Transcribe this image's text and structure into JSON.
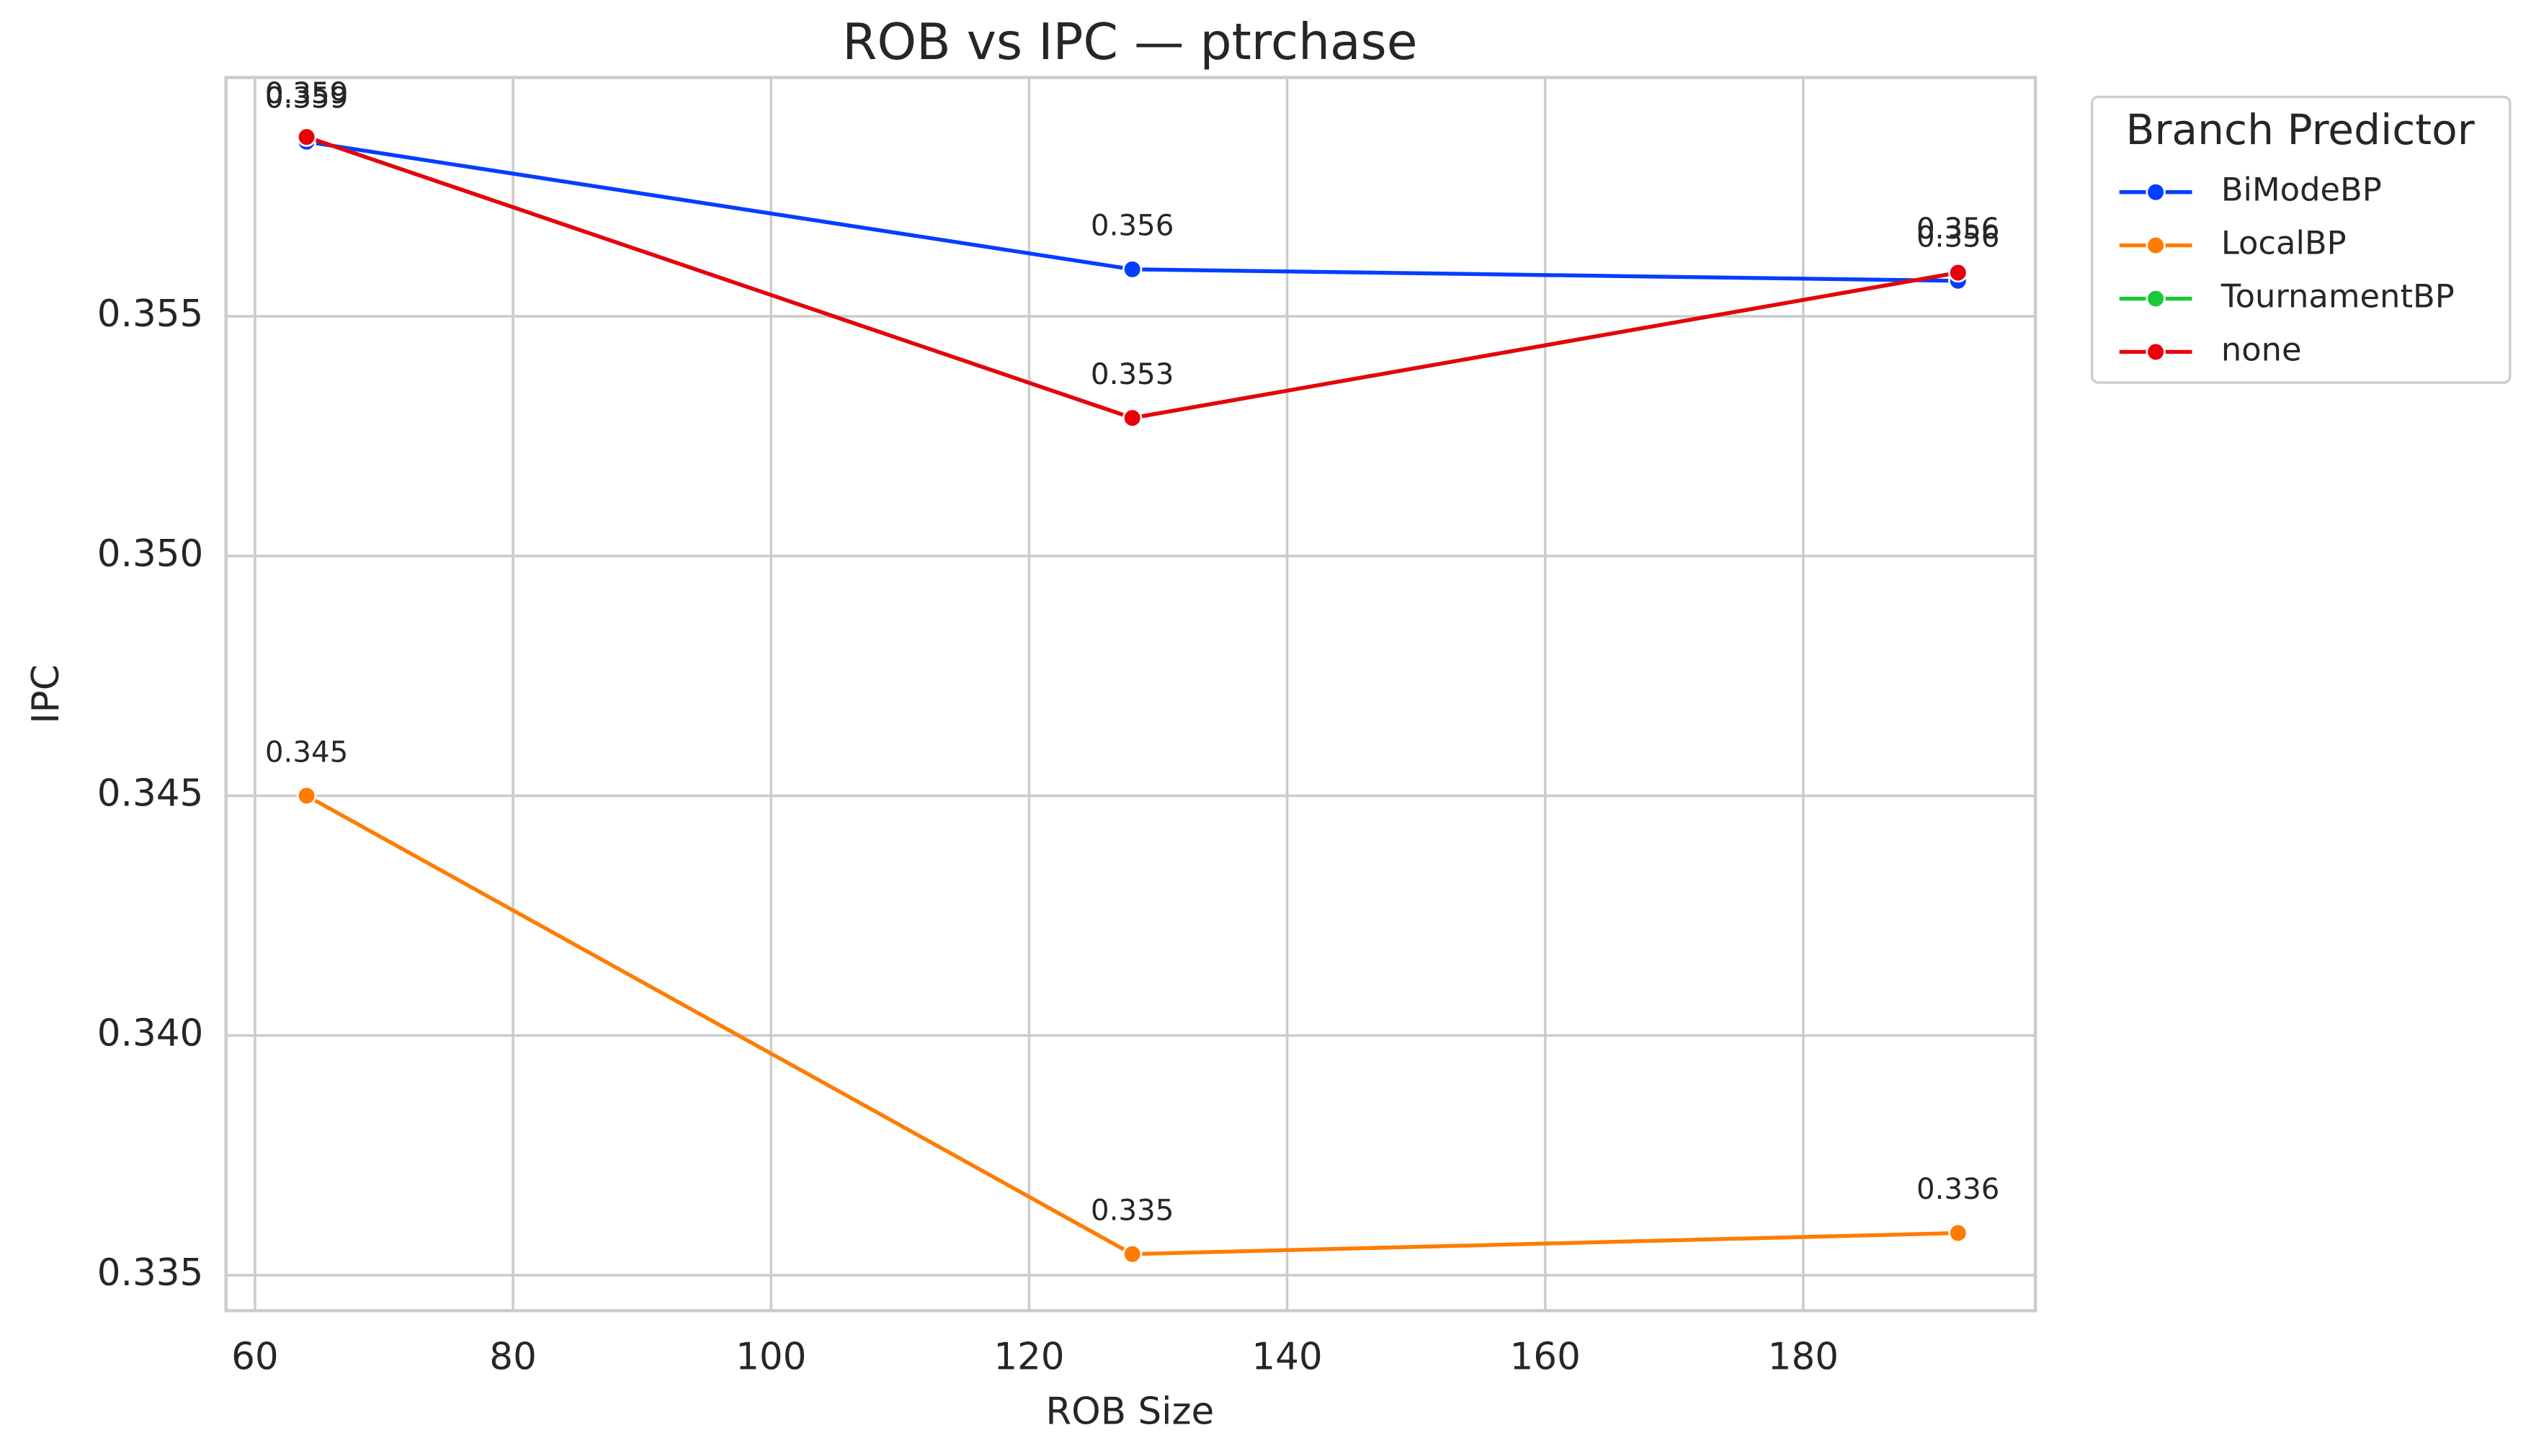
{
  "chart_data": {
    "type": "line",
    "title": "ROB vs IPC — ptrchase",
    "x_label": "ROB Size",
    "y_label": "IPC",
    "x": [
      64,
      128,
      192
    ],
    "xlim": [
      57.75,
      198.0
    ],
    "ylim": [
      0.33426,
      0.35998
    ],
    "xticks": [
      60,
      80,
      100,
      120,
      140,
      160,
      180
    ],
    "yticks": [
      0.335,
      {
        "value": 0.34,
        "label": "0.340"
      },
      0.345,
      {
        "value": 0.35,
        "label": "0.350"
      },
      0.355
    ],
    "grid": true,
    "legend_title": "Branch Predictor",
    "legend_position": "outside-upper-right",
    "series": [
      {
        "name": "BiModeBP",
        "color": "#023eff",
        "values": [
          0.35864,
          0.35598,
          0.35574
        ],
        "value_labels": [
          "0.359",
          "0.356",
          "0.356"
        ]
      },
      {
        "name": "LocalBP",
        "color": "#ff7c00",
        "values": [
          0.345,
          0.33544,
          0.33588
        ],
        "value_labels": [
          "0.345",
          "0.335",
          "0.336"
        ]
      },
      {
        "name": "TournamentBP",
        "color": "#1ac938",
        "values": [
          0.35874,
          0.35288,
          0.35591
        ],
        "value_labels": [
          "0.359",
          "0.353",
          "0.356"
        ]
      },
      {
        "name": "none",
        "color": "#e8000b",
        "values": [
          0.35874,
          0.35288,
          0.35591
        ],
        "value_labels": [
          "0.359",
          "0.353",
          "0.356"
        ]
      }
    ]
  }
}
